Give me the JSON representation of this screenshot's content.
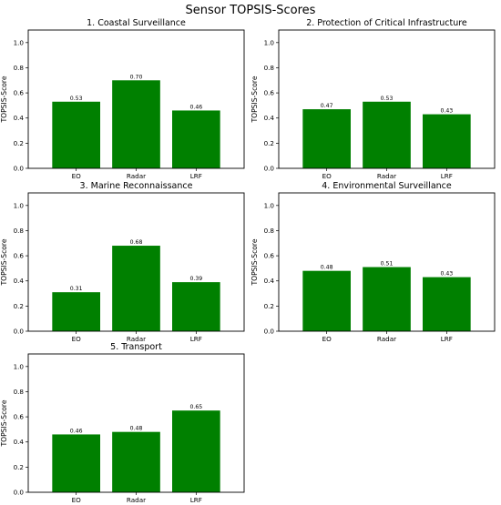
{
  "title": "Sensor TOPSIS-Scores",
  "colors": {
    "bar": "#008000"
  },
  "chart_data": [
    {
      "type": "bar",
      "title": "1. Coastal Surveillance",
      "categories": [
        "EO",
        "Radar",
        "LRF"
      ],
      "values": [
        0.53,
        0.7,
        0.46
      ],
      "data_labels": [
        "0.53",
        "0.70",
        "0.46"
      ],
      "ylabel": "TOPSIS-Score",
      "ylim": [
        0,
        1.1
      ],
      "yticks": [
        "0.0",
        "0.2",
        "0.4",
        "0.6",
        "0.8",
        "1.0"
      ],
      "grid": false
    },
    {
      "type": "bar",
      "title": "2. Protection of Critical Infrastructure",
      "categories": [
        "EO",
        "Radar",
        "LRF"
      ],
      "values": [
        0.47,
        0.53,
        0.43
      ],
      "data_labels": [
        "0.47",
        "0.53",
        "0.43"
      ],
      "ylabel": "TOPSIS-Score",
      "ylim": [
        0,
        1.1
      ],
      "yticks": [
        "0.0",
        "0.2",
        "0.4",
        "0.6",
        "0.8",
        "1.0"
      ],
      "grid": false
    },
    {
      "type": "bar",
      "title": "3. Marine Reconnaissance",
      "categories": [
        "EO",
        "Radar",
        "LRF"
      ],
      "values": [
        0.31,
        0.68,
        0.39
      ],
      "data_labels": [
        "0.31",
        "0.68",
        "0.39"
      ],
      "ylabel": "TOPSIS-Score",
      "ylim": [
        0,
        1.1
      ],
      "yticks": [
        "0.0",
        "0.2",
        "0.4",
        "0.6",
        "0.8",
        "1.0"
      ],
      "grid": false
    },
    {
      "type": "bar",
      "title": "4. Environmental Surveillance",
      "categories": [
        "EO",
        "Radar",
        "LRF"
      ],
      "values": [
        0.48,
        0.51,
        0.43
      ],
      "data_labels": [
        "0.48",
        "0.51",
        "0.43"
      ],
      "ylabel": "TOPSIS-Score",
      "ylim": [
        0,
        1.1
      ],
      "yticks": [
        "0.0",
        "0.2",
        "0.4",
        "0.6",
        "0.8",
        "1.0"
      ],
      "grid": false
    },
    {
      "type": "bar",
      "title": "5. Transport",
      "categories": [
        "EO",
        "Radar",
        "LRF"
      ],
      "values": [
        0.46,
        0.48,
        0.65
      ],
      "data_labels": [
        "0.46",
        "0.48",
        "0.65"
      ],
      "ylabel": "TOPSIS-Score",
      "ylim": [
        0,
        1.1
      ],
      "yticks": [
        "0.0",
        "0.2",
        "0.4",
        "0.6",
        "0.8",
        "1.0"
      ],
      "grid": false
    }
  ]
}
